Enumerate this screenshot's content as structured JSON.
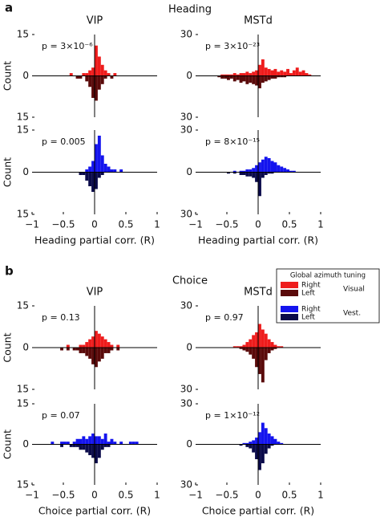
{
  "sections": [
    {
      "letter": "a",
      "title": "Heading"
    },
    {
      "letter": "b",
      "title": "Choice"
    }
  ],
  "legend": {
    "title": "Global azimuth tuning",
    "groups": [
      {
        "label": "Visual",
        "items": [
          {
            "name": "Right",
            "color": "#ee1c1c"
          },
          {
            "name": "Left",
            "color": "#5a0a0a"
          }
        ]
      },
      {
        "label": "Vest.",
        "items": [
          {
            "name": "Right",
            "color": "#1414ee"
          },
          {
            "name": "Left",
            "color": "#0a0a4a"
          }
        ]
      }
    ]
  },
  "chart_data": [
    {
      "type": "histogram",
      "title": "VIP",
      "ylabel": "Count",
      "annotation": "p = 3×10⁻⁶",
      "xlim": [
        -1,
        1
      ],
      "ylim": [
        -15,
        15
      ],
      "yticks": [
        {
          "value": -15,
          "label": "15"
        },
        0,
        15
      ],
      "bins": [
        -0.9,
        -0.85,
        -0.8,
        -0.75,
        -0.7,
        -0.65,
        -0.6,
        -0.55,
        -0.5,
        -0.45,
        -0.4,
        -0.35,
        -0.3,
        -0.25,
        -0.2,
        -0.15,
        -0.1,
        -0.05,
        0,
        0.05,
        0.1,
        0.15,
        0.2,
        0.25,
        0.3,
        0.35,
        0.4,
        0.45,
        0.5,
        0.55,
        0.6,
        0.65,
        0.7,
        0.75,
        0.8,
        0.85,
        0.9
      ],
      "series": [
        {
          "color": "#ee1c1c",
          "values": [
            0,
            0,
            0,
            0,
            0,
            0,
            0,
            0,
            0,
            0,
            1,
            0,
            0,
            0,
            1,
            1,
            2,
            3,
            11,
            7,
            4,
            2,
            1,
            0,
            1,
            0,
            0,
            0,
            0,
            0,
            0,
            0,
            0,
            0,
            0,
            0
          ]
        },
        {
          "color": "#5a0a0a",
          "values": [
            0,
            0,
            0,
            0,
            0,
            0,
            0,
            0,
            0,
            0,
            0,
            0,
            1,
            1,
            0,
            2,
            4,
            8,
            9,
            5,
            3,
            1,
            0,
            1,
            0,
            0,
            0,
            0,
            0,
            0,
            0,
            0,
            0,
            0,
            0,
            0
          ]
        }
      ]
    },
    {
      "type": "histogram",
      "title": "MSTd",
      "annotation": "p = 3×10⁻²³",
      "xlim": [
        -1,
        1
      ],
      "ylim": [
        -30,
        30
      ],
      "yticks": [
        {
          "value": -30,
          "label": "30"
        },
        0,
        30
      ],
      "bins": [
        -0.9,
        -0.85,
        -0.8,
        -0.75,
        -0.7,
        -0.65,
        -0.6,
        -0.55,
        -0.5,
        -0.45,
        -0.4,
        -0.35,
        -0.3,
        -0.25,
        -0.2,
        -0.15,
        -0.1,
        -0.05,
        0,
        0.05,
        0.1,
        0.15,
        0.2,
        0.25,
        0.3,
        0.35,
        0.4,
        0.45,
        0.5,
        0.55,
        0.6,
        0.65,
        0.7,
        0.75,
        0.8,
        0.85,
        0.9
      ],
      "series": [
        {
          "color": "#ee1c1c",
          "values": [
            0,
            0,
            0,
            0,
            0,
            0,
            1,
            1,
            1,
            1,
            2,
            1,
            2,
            2,
            3,
            2,
            3,
            4,
            8,
            12,
            6,
            5,
            4,
            5,
            3,
            4,
            3,
            5,
            2,
            4,
            6,
            3,
            4,
            2,
            1,
            0
          ]
        },
        {
          "color": "#5a0a0a",
          "values": [
            0,
            0,
            0,
            0,
            0,
            1,
            2,
            2,
            3,
            2,
            4,
            3,
            5,
            4,
            6,
            5,
            6,
            7,
            9,
            5,
            4,
            3,
            2,
            2,
            1,
            1,
            1,
            0,
            0,
            0,
            0,
            0,
            0,
            0,
            0,
            0
          ]
        }
      ]
    },
    {
      "type": "histogram",
      "ylabel": "Count",
      "annotation": "p = 0.005",
      "xlabel": "Heading partial corr. (R)",
      "xlim": [
        -1,
        1
      ],
      "xticks": [
        {
          "value": -1,
          "label": "−1"
        },
        {
          "value": -0.5,
          "label": "−0.5"
        },
        0,
        0.5,
        1
      ],
      "ylim": [
        -15,
        15
      ],
      "yticks": [
        {
          "value": -15,
          "label": "15"
        },
        0,
        15
      ],
      "bins": [
        -0.9,
        -0.85,
        -0.8,
        -0.75,
        -0.7,
        -0.65,
        -0.6,
        -0.55,
        -0.5,
        -0.45,
        -0.4,
        -0.35,
        -0.3,
        -0.25,
        -0.2,
        -0.15,
        -0.1,
        -0.05,
        0,
        0.05,
        0.1,
        0.15,
        0.2,
        0.25,
        0.3,
        0.35,
        0.4,
        0.45,
        0.5,
        0.55,
        0.6,
        0.65,
        0.7,
        0.75,
        0.8,
        0.85,
        0.9
      ],
      "series": [
        {
          "color": "#1414ee",
          "values": [
            0,
            0,
            0,
            0,
            0,
            0,
            0,
            0,
            0,
            0,
            0,
            0,
            0,
            0,
            0,
            1,
            2,
            4,
            10,
            13,
            6,
            3,
            2,
            1,
            1,
            0,
            1,
            0,
            0,
            0,
            0,
            0,
            0,
            0,
            0,
            0
          ]
        },
        {
          "color": "#0a0a4a",
          "values": [
            0,
            0,
            0,
            0,
            0,
            0,
            0,
            0,
            0,
            0,
            0,
            0,
            0,
            1,
            1,
            3,
            5,
            7,
            6,
            2,
            1,
            0,
            0,
            0,
            0,
            0,
            0,
            0,
            0,
            0,
            0,
            0,
            0,
            0,
            0,
            0
          ]
        }
      ]
    },
    {
      "type": "histogram",
      "annotation": "p = 8×10⁻¹⁵",
      "xlabel": "Heading partial corr. (R)",
      "xlim": [
        -1,
        1
      ],
      "xticks": [
        {
          "value": -1,
          "label": "−1"
        },
        {
          "value": -0.5,
          "label": "−0.5"
        },
        0,
        0.5,
        1
      ],
      "ylim": [
        -30,
        30
      ],
      "yticks": [
        {
          "value": -30,
          "label": "30"
        },
        0,
        30
      ],
      "bins": [
        -0.9,
        -0.85,
        -0.8,
        -0.75,
        -0.7,
        -0.65,
        -0.6,
        -0.55,
        -0.5,
        -0.45,
        -0.4,
        -0.35,
        -0.3,
        -0.25,
        -0.2,
        -0.15,
        -0.1,
        -0.05,
        0,
        0.05,
        0.1,
        0.15,
        0.2,
        0.25,
        0.3,
        0.35,
        0.4,
        0.45,
        0.5,
        0.55,
        0.6,
        0.65,
        0.7,
        0.75,
        0.8,
        0.85,
        0.9
      ],
      "series": [
        {
          "color": "#1414ee",
          "values": [
            0,
            0,
            0,
            0,
            0,
            0,
            0,
            0,
            0,
            0,
            1,
            0,
            1,
            1,
            2,
            2,
            3,
            5,
            7,
            9,
            11,
            10,
            8,
            7,
            5,
            4,
            3,
            2,
            1,
            1,
            0,
            0,
            0,
            0,
            0,
            0
          ]
        },
        {
          "color": "#0a0a4a",
          "values": [
            0,
            0,
            0,
            0,
            0,
            0,
            0,
            0,
            1,
            0,
            1,
            0,
            2,
            2,
            3,
            3,
            4,
            7,
            17,
            4,
            2,
            1,
            1,
            0,
            0,
            0,
            0,
            0,
            0,
            0,
            0,
            0,
            0,
            0,
            0,
            0
          ]
        }
      ]
    },
    {
      "type": "histogram",
      "title": "VIP",
      "ylabel": "Count",
      "annotation": "p = 0.13",
      "xlim": [
        -1,
        1
      ],
      "ylim": [
        -15,
        15
      ],
      "yticks": [
        {
          "value": -15,
          "label": "15"
        },
        0,
        15
      ],
      "bins": [
        -0.9,
        -0.85,
        -0.8,
        -0.75,
        -0.7,
        -0.65,
        -0.6,
        -0.55,
        -0.5,
        -0.45,
        -0.4,
        -0.35,
        -0.3,
        -0.25,
        -0.2,
        -0.15,
        -0.1,
        -0.05,
        0,
        0.05,
        0.1,
        0.15,
        0.2,
        0.25,
        0.3,
        0.35,
        0.4,
        0.45,
        0.5,
        0.55,
        0.6,
        0.65,
        0.7,
        0.75,
        0.8,
        0.85,
        0.9
      ],
      "series": [
        {
          "color": "#ee1c1c",
          "values": [
            0,
            0,
            0,
            0,
            0,
            0,
            0,
            0,
            0,
            1,
            0,
            0,
            0,
            1,
            1,
            2,
            3,
            4,
            6,
            5,
            4,
            3,
            2,
            1,
            0,
            1,
            0,
            0,
            0,
            0,
            0,
            0,
            0,
            0,
            0,
            0
          ]
        },
        {
          "color": "#5a0a0a",
          "values": [
            0,
            0,
            0,
            0,
            0,
            0,
            0,
            1,
            0,
            1,
            0,
            1,
            1,
            2,
            2,
            3,
            4,
            6,
            7,
            5,
            4,
            2,
            2,
            1,
            0,
            1,
            0,
            0,
            0,
            0,
            0,
            0,
            0,
            0,
            0,
            0
          ]
        }
      ]
    },
    {
      "type": "histogram",
      "title": "MSTd",
      "annotation": "p = 0.97",
      "xlim": [
        -1,
        1
      ],
      "ylim": [
        -30,
        30
      ],
      "yticks": [
        {
          "value": -30,
          "label": "30"
        },
        0,
        30
      ],
      "bins": [
        -0.9,
        -0.85,
        -0.8,
        -0.75,
        -0.7,
        -0.65,
        -0.6,
        -0.55,
        -0.5,
        -0.45,
        -0.4,
        -0.35,
        -0.3,
        -0.25,
        -0.2,
        -0.15,
        -0.1,
        -0.05,
        0,
        0.05,
        0.1,
        0.15,
        0.2,
        0.25,
        0.3,
        0.35,
        0.4,
        0.45,
        0.5,
        0.55,
        0.6,
        0.65,
        0.7,
        0.75,
        0.8,
        0.85,
        0.9
      ],
      "series": [
        {
          "color": "#ee1c1c",
          "values": [
            0,
            0,
            0,
            0,
            0,
            0,
            0,
            0,
            0,
            0,
            1,
            1,
            1,
            2,
            4,
            6,
            9,
            11,
            17,
            13,
            10,
            6,
            4,
            2,
            1,
            1,
            0,
            0,
            0,
            0,
            0,
            0,
            0,
            0,
            0,
            0
          ]
        },
        {
          "color": "#5a0a0a",
          "values": [
            0,
            0,
            0,
            0,
            0,
            0,
            0,
            0,
            0,
            0,
            0,
            0,
            1,
            2,
            3,
            5,
            8,
            14,
            19,
            25,
            9,
            4,
            2,
            1,
            0,
            0,
            0,
            0,
            0,
            0,
            0,
            0,
            0,
            0,
            0,
            0
          ]
        }
      ]
    },
    {
      "type": "histogram",
      "ylabel": "Count",
      "annotation": "p = 0.07",
      "xlabel": "Choice partial corr. (R)",
      "xlim": [
        -1,
        1
      ],
      "xticks": [
        {
          "value": -1,
          "label": "−1"
        },
        {
          "value": -0.5,
          "label": "−0.5"
        },
        0,
        0.5,
        1
      ],
      "ylim": [
        -15,
        15
      ],
      "yticks": [
        {
          "value": -15,
          "label": "15"
        },
        0,
        15
      ],
      "bins": [
        -0.9,
        -0.85,
        -0.8,
        -0.75,
        -0.7,
        -0.65,
        -0.6,
        -0.55,
        -0.5,
        -0.45,
        -0.4,
        -0.35,
        -0.3,
        -0.25,
        -0.2,
        -0.15,
        -0.1,
        -0.05,
        0,
        0.05,
        0.1,
        0.15,
        0.2,
        0.25,
        0.3,
        0.35,
        0.4,
        0.45,
        0.5,
        0.55,
        0.6,
        0.65,
        0.7,
        0.75,
        0.8,
        0.85,
        0.9
      ],
      "series": [
        {
          "color": "#1414ee",
          "values": [
            0,
            0,
            0,
            0,
            1,
            0,
            0,
            1,
            1,
            1,
            0,
            1,
            2,
            2,
            3,
            2,
            3,
            4,
            3,
            3,
            2,
            4,
            1,
            2,
            1,
            0,
            1,
            0,
            0,
            1,
            1,
            1,
            0,
            0,
            0,
            0
          ]
        },
        {
          "color": "#0a0a4a",
          "values": [
            0,
            0,
            0,
            0,
            0,
            0,
            0,
            1,
            0,
            0,
            1,
            1,
            1,
            2,
            2,
            3,
            4,
            5,
            7,
            5,
            2,
            1,
            1,
            0,
            0,
            0,
            0,
            0,
            0,
            0,
            0,
            0,
            0,
            0,
            0,
            0
          ]
        }
      ]
    },
    {
      "type": "histogram",
      "annotation": "p = 1×10⁻¹²",
      "xlabel": "Choice partial corr. (R)",
      "xlim": [
        -1,
        1
      ],
      "xticks": [
        {
          "value": -1,
          "label": "−1"
        },
        {
          "value": -0.5,
          "label": "−0.5"
        },
        0,
        0.5,
        1
      ],
      "ylim": [
        -30,
        30
      ],
      "yticks": [
        {
          "value": -30,
          "label": "30"
        },
        0,
        30
      ],
      "bins": [
        -0.9,
        -0.85,
        -0.8,
        -0.75,
        -0.7,
        -0.65,
        -0.6,
        -0.55,
        -0.5,
        -0.45,
        -0.4,
        -0.35,
        -0.3,
        -0.25,
        -0.2,
        -0.15,
        -0.1,
        -0.05,
        0,
        0.05,
        0.1,
        0.15,
        0.2,
        0.25,
        0.3,
        0.35,
        0.4,
        0.45,
        0.5,
        0.55,
        0.6,
        0.65,
        0.7,
        0.75,
        0.8,
        0.85,
        0.9
      ],
      "series": [
        {
          "color": "#1414ee",
          "values": [
            0,
            0,
            0,
            0,
            0,
            0,
            0,
            0,
            0,
            0,
            0,
            0,
            0,
            1,
            1,
            2,
            3,
            5,
            9,
            16,
            12,
            8,
            6,
            4,
            2,
            1,
            0,
            0,
            0,
            0,
            0,
            0,
            0,
            0,
            0,
            0
          ]
        },
        {
          "color": "#0a0a4a",
          "values": [
            0,
            0,
            0,
            0,
            0,
            0,
            0,
            0,
            0,
            0,
            0,
            0,
            1,
            0,
            2,
            3,
            6,
            11,
            19,
            14,
            7,
            3,
            1,
            0,
            0,
            0,
            0,
            0,
            0,
            0,
            0,
            0,
            0,
            0,
            0,
            0
          ]
        }
      ]
    }
  ]
}
